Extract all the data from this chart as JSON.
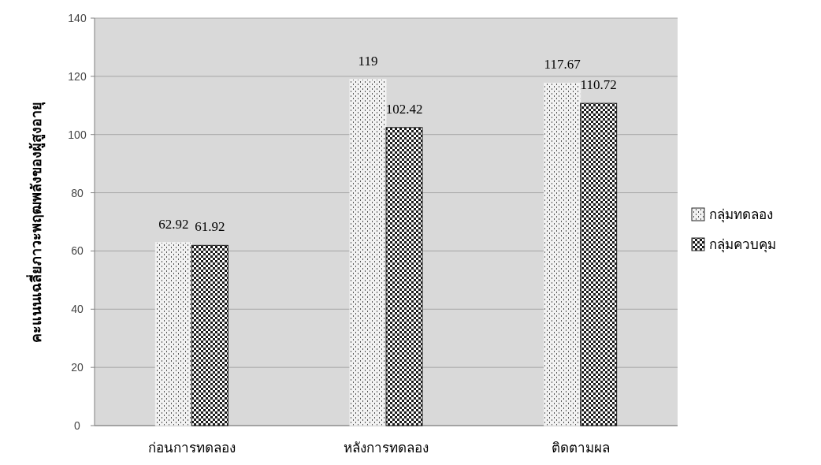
{
  "chart_data": {
    "type": "bar",
    "ylabel": "คะแนนเฉลี่ยภาวะพฤฒพลังของผู้สูงอายุ",
    "categories": [
      "ก่อนการทดลอง",
      "หลังการทดลอง",
      "ติดตามผล"
    ],
    "series": [
      {
        "name": "กลุ่มทดลอง",
        "color": "#f2f2f2",
        "values": [
          62.92,
          119,
          117.67
        ]
      },
      {
        "name": "กลุ่มควบคุม",
        "color": "#1a1a1a",
        "values": [
          61.92,
          102.42,
          110.72
        ]
      }
    ],
    "ylim": [
      0,
      140
    ],
    "yticks": [
      0,
      20,
      40,
      60,
      80,
      100,
      120,
      140
    ],
    "grid": "y",
    "legend": "right",
    "data_labels": true
  }
}
